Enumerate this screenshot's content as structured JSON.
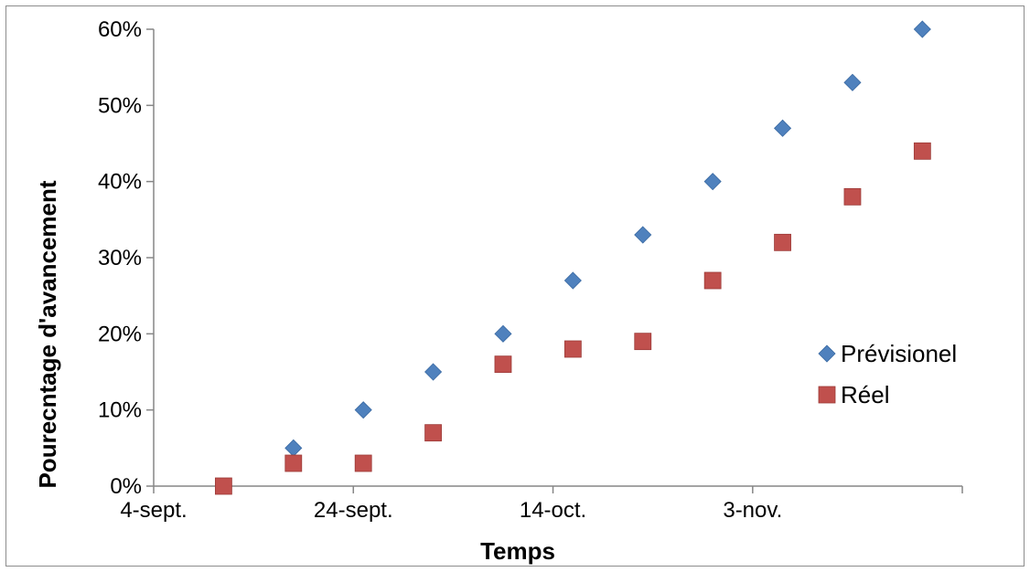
{
  "chart_data": {
    "type": "scatter",
    "xlabel": "Temps",
    "ylabel": "Pourecntage d'avancement",
    "x_ticks": [
      "4-sept.",
      "24-sept.",
      "14-oct.",
      "3-nov."
    ],
    "y_ticks": [
      "0%",
      "10%",
      "20%",
      "30%",
      "40%",
      "50%",
      "60%"
    ],
    "xlim": [
      "4-sept.",
      "24-nov."
    ],
    "ylim": [
      0,
      60
    ],
    "grid": false,
    "legend_position": "right",
    "series": [
      {
        "name": "Prévisionel",
        "marker": "diamond",
        "color": "#4f81bd",
        "points": [
          {
            "x": "18-sept.",
            "y": 5
          },
          {
            "x": "25-sept.",
            "y": 10
          },
          {
            "x": "2-oct.",
            "y": 15
          },
          {
            "x": "9-oct.",
            "y": 20
          },
          {
            "x": "16-oct.",
            "y": 27
          },
          {
            "x": "23-oct.",
            "y": 33
          },
          {
            "x": "30-oct.",
            "y": 40
          },
          {
            "x": "6-nov.",
            "y": 47
          },
          {
            "x": "13-nov.",
            "y": 53
          },
          {
            "x": "20-nov.",
            "y": 60
          }
        ]
      },
      {
        "name": "Réel",
        "marker": "square",
        "color": "#c0504d",
        "points": [
          {
            "x": "11-sept.",
            "y": 0
          },
          {
            "x": "18-sept.",
            "y": 3
          },
          {
            "x": "25-sept.",
            "y": 3
          },
          {
            "x": "2-oct.",
            "y": 7
          },
          {
            "x": "9-oct.",
            "y": 16
          },
          {
            "x": "16-oct.",
            "y": 18
          },
          {
            "x": "23-oct.",
            "y": 19
          },
          {
            "x": "30-oct.",
            "y": 27
          },
          {
            "x": "6-nov.",
            "y": 32
          },
          {
            "x": "13-nov.",
            "y": 38
          },
          {
            "x": "20-nov.",
            "y": 44
          }
        ]
      }
    ]
  }
}
